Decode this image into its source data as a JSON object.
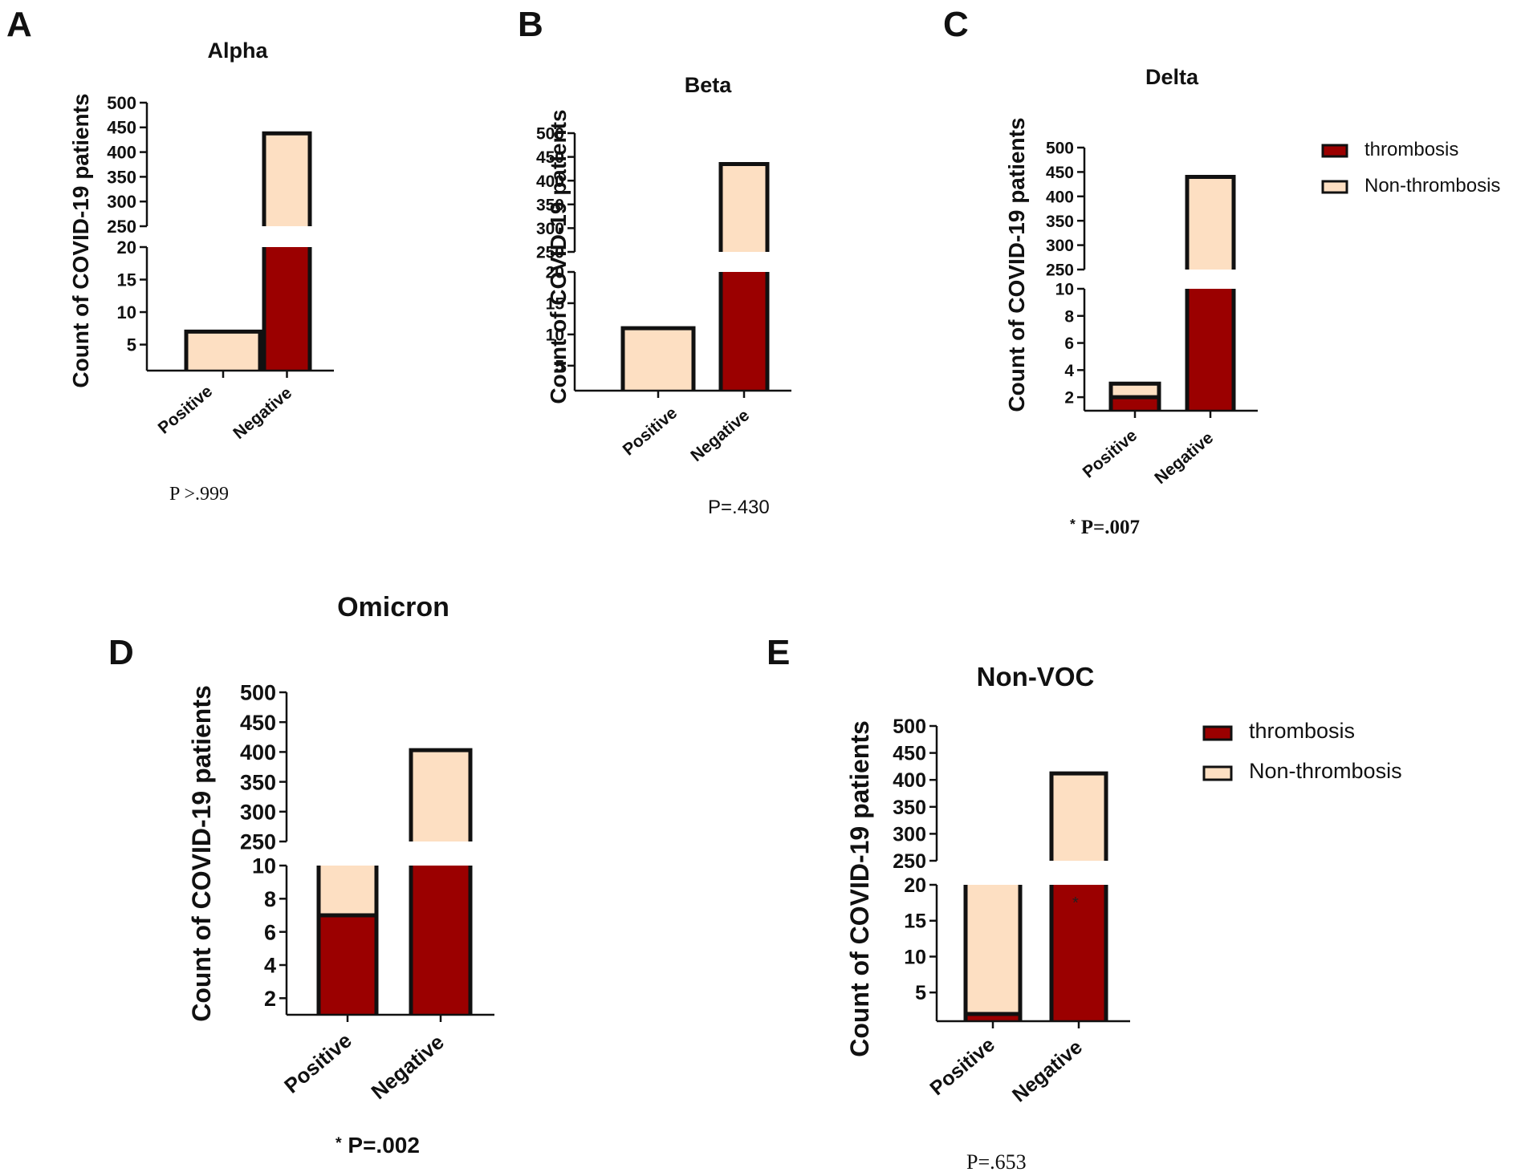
{
  "colors": {
    "thrombosis": "#9b0000",
    "non_thrombosis": "#fddfc2",
    "axis": "#111111"
  },
  "legends": [
    {
      "items": [
        {
          "label": "thrombosis"
        },
        {
          "label": "Non-thrombosis"
        }
      ]
    },
    {
      "items": [
        {
          "label": "thrombosis"
        },
        {
          "label": "Non-thrombosis"
        }
      ]
    }
  ],
  "chart_data": [
    {
      "panel": "A",
      "type": "bar",
      "title": "Alpha",
      "ylabel": "Count of COVID-19 patients",
      "categories": [
        "Positive",
        "Negative"
      ],
      "series": [
        {
          "name": "thrombosis",
          "values": [
            0,
            20
          ]
        },
        {
          "name": "Non-thrombosis",
          "values": [
            7,
            418
          ]
        }
      ],
      "broken_axis": {
        "lower": [
          1,
          20
        ],
        "upper": [
          250,
          500
        ]
      },
      "lower_ticks": [
        5,
        10,
        15,
        20
      ],
      "upper_ticks": [
        250,
        300,
        350,
        400,
        450,
        500
      ],
      "p_value": "P >.999",
      "significant": false
    },
    {
      "panel": "B",
      "type": "bar",
      "title": "Beta",
      "ylabel": "Count of COVID-19 patients",
      "categories": [
        "Positive",
        "Negative"
      ],
      "series": [
        {
          "name": "thrombosis",
          "values": [
            0,
            20
          ]
        },
        {
          "name": "Non-thrombosis",
          "values": [
            11,
            415
          ]
        }
      ],
      "broken_axis": {
        "lower": [
          1,
          20
        ],
        "upper": [
          250,
          500
        ]
      },
      "lower_ticks": [
        5,
        10,
        15,
        20
      ],
      "upper_ticks": [
        250,
        300,
        350,
        400,
        450,
        500
      ],
      "p_value": "P=.430",
      "significant": false
    },
    {
      "panel": "C",
      "type": "bar",
      "title": "Delta",
      "ylabel": "Count of COVID-19 patients",
      "categories": [
        "Positive",
        "Negative"
      ],
      "series": [
        {
          "name": "thrombosis",
          "values": [
            2,
            10
          ]
        },
        {
          "name": "Non-thrombosis",
          "values": [
            1,
            430
          ]
        }
      ],
      "broken_axis": {
        "lower": [
          1,
          10
        ],
        "upper": [
          250,
          500
        ]
      },
      "lower_ticks": [
        2,
        4,
        6,
        8,
        10
      ],
      "upper_ticks": [
        250,
        300,
        350,
        400,
        450,
        500
      ],
      "p_value": "P=.007",
      "significant": true
    },
    {
      "panel": "D",
      "type": "bar",
      "title": "Omicron",
      "ylabel": "Count of COVID-19 patients",
      "categories": [
        "Positive",
        "Negative"
      ],
      "series": [
        {
          "name": "thrombosis",
          "values": [
            7,
            10
          ]
        },
        {
          "name": "Non-thrombosis",
          "values": [
            3,
            393
          ]
        }
      ],
      "broken_axis": {
        "lower": [
          1,
          10
        ],
        "upper": [
          250,
          500
        ]
      },
      "lower_ticks": [
        2,
        4,
        6,
        8,
        10
      ],
      "upper_ticks": [
        250,
        300,
        350,
        400,
        450,
        500
      ],
      "p_value": "P=.002",
      "significant": true
    },
    {
      "panel": "E",
      "type": "bar",
      "title": "Non-VOC",
      "ylabel": "Count of COVID-19 patients",
      "categories": [
        "Positive",
        "Negative"
      ],
      "series": [
        {
          "name": "thrombosis",
          "values": [
            2,
            20
          ]
        },
        {
          "name": "Non-thrombosis",
          "values": [
            18,
            392
          ]
        }
      ],
      "broken_axis": {
        "lower": [
          1,
          20
        ],
        "upper": [
          250,
          500
        ]
      },
      "lower_ticks": [
        5,
        10,
        15,
        20
      ],
      "upper_ticks": [
        250,
        300,
        350,
        400,
        450,
        500
      ],
      "p_value": "P=.653",
      "significant": false
    }
  ]
}
